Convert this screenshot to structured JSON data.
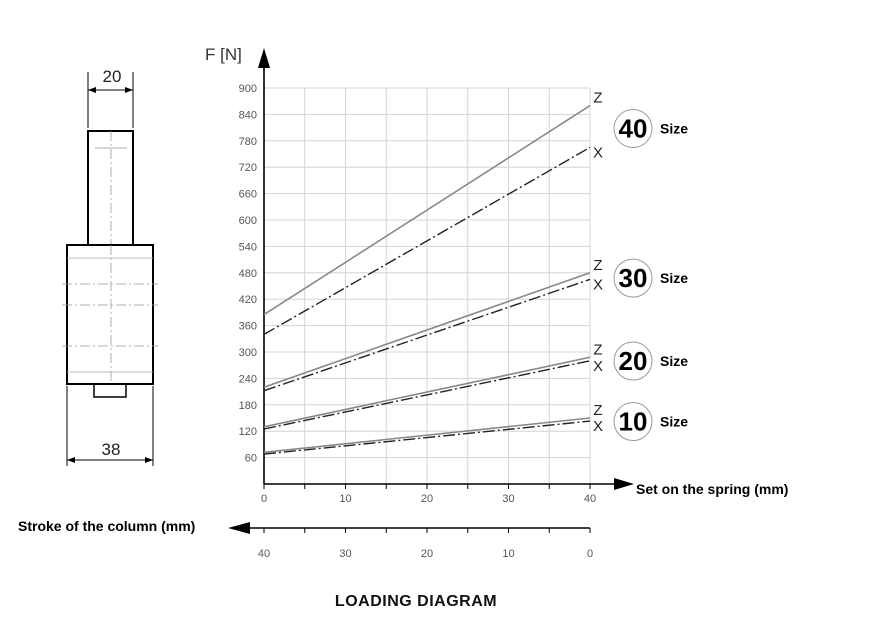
{
  "drawing": {
    "width_label": "20",
    "base_width_label": "38"
  },
  "chart_data": {
    "type": "line",
    "title": "LOADING DIAGRAM",
    "ylabel": "F [N]",
    "xlabel": "Set on the spring (mm)",
    "x2label": "Stroke of the column (mm)",
    "xlim": [
      0,
      40
    ],
    "ylim": [
      0,
      900
    ],
    "y_ticks": [
      60,
      120,
      180,
      240,
      300,
      360,
      420,
      480,
      540,
      600,
      660,
      720,
      780,
      840,
      900
    ],
    "x_ticks": [
      0,
      10,
      20,
      30,
      40
    ],
    "x2_ticks": [
      40,
      30,
      20,
      10,
      0
    ],
    "grid": true,
    "series": [
      {
        "name": "Z",
        "size": "40",
        "style": "solid",
        "x": [
          0,
          40
        ],
        "values": [
          385,
          860
        ]
      },
      {
        "name": "X",
        "size": "40",
        "style": "dashdot",
        "x": [
          0,
          40
        ],
        "values": [
          340,
          765
        ]
      },
      {
        "name": "Z",
        "size": "30",
        "style": "solid",
        "x": [
          0,
          40
        ],
        "values": [
          220,
          480
        ]
      },
      {
        "name": "X",
        "size": "30",
        "style": "dashdot",
        "x": [
          0,
          40
        ],
        "values": [
          212,
          465
        ]
      },
      {
        "name": "Z",
        "size": "20",
        "style": "solid",
        "x": [
          0,
          40
        ],
        "values": [
          130,
          288
        ]
      },
      {
        "name": "X",
        "size": "20",
        "style": "dashdot",
        "x": [
          0,
          40
        ],
        "values": [
          125,
          280
        ]
      },
      {
        "name": "Z",
        "size": "10",
        "style": "solid",
        "x": [
          0,
          40
        ],
        "values": [
          72,
          150
        ]
      },
      {
        "name": "X",
        "size": "10",
        "style": "dashdot",
        "x": [
          0,
          40
        ],
        "values": [
          68,
          143
        ]
      }
    ],
    "size_labels": [
      {
        "value": "40",
        "suffix": "Size"
      },
      {
        "value": "30",
        "suffix": "Size"
      },
      {
        "value": "20",
        "suffix": "Size"
      },
      {
        "value": "10",
        "suffix": "Size"
      }
    ]
  }
}
